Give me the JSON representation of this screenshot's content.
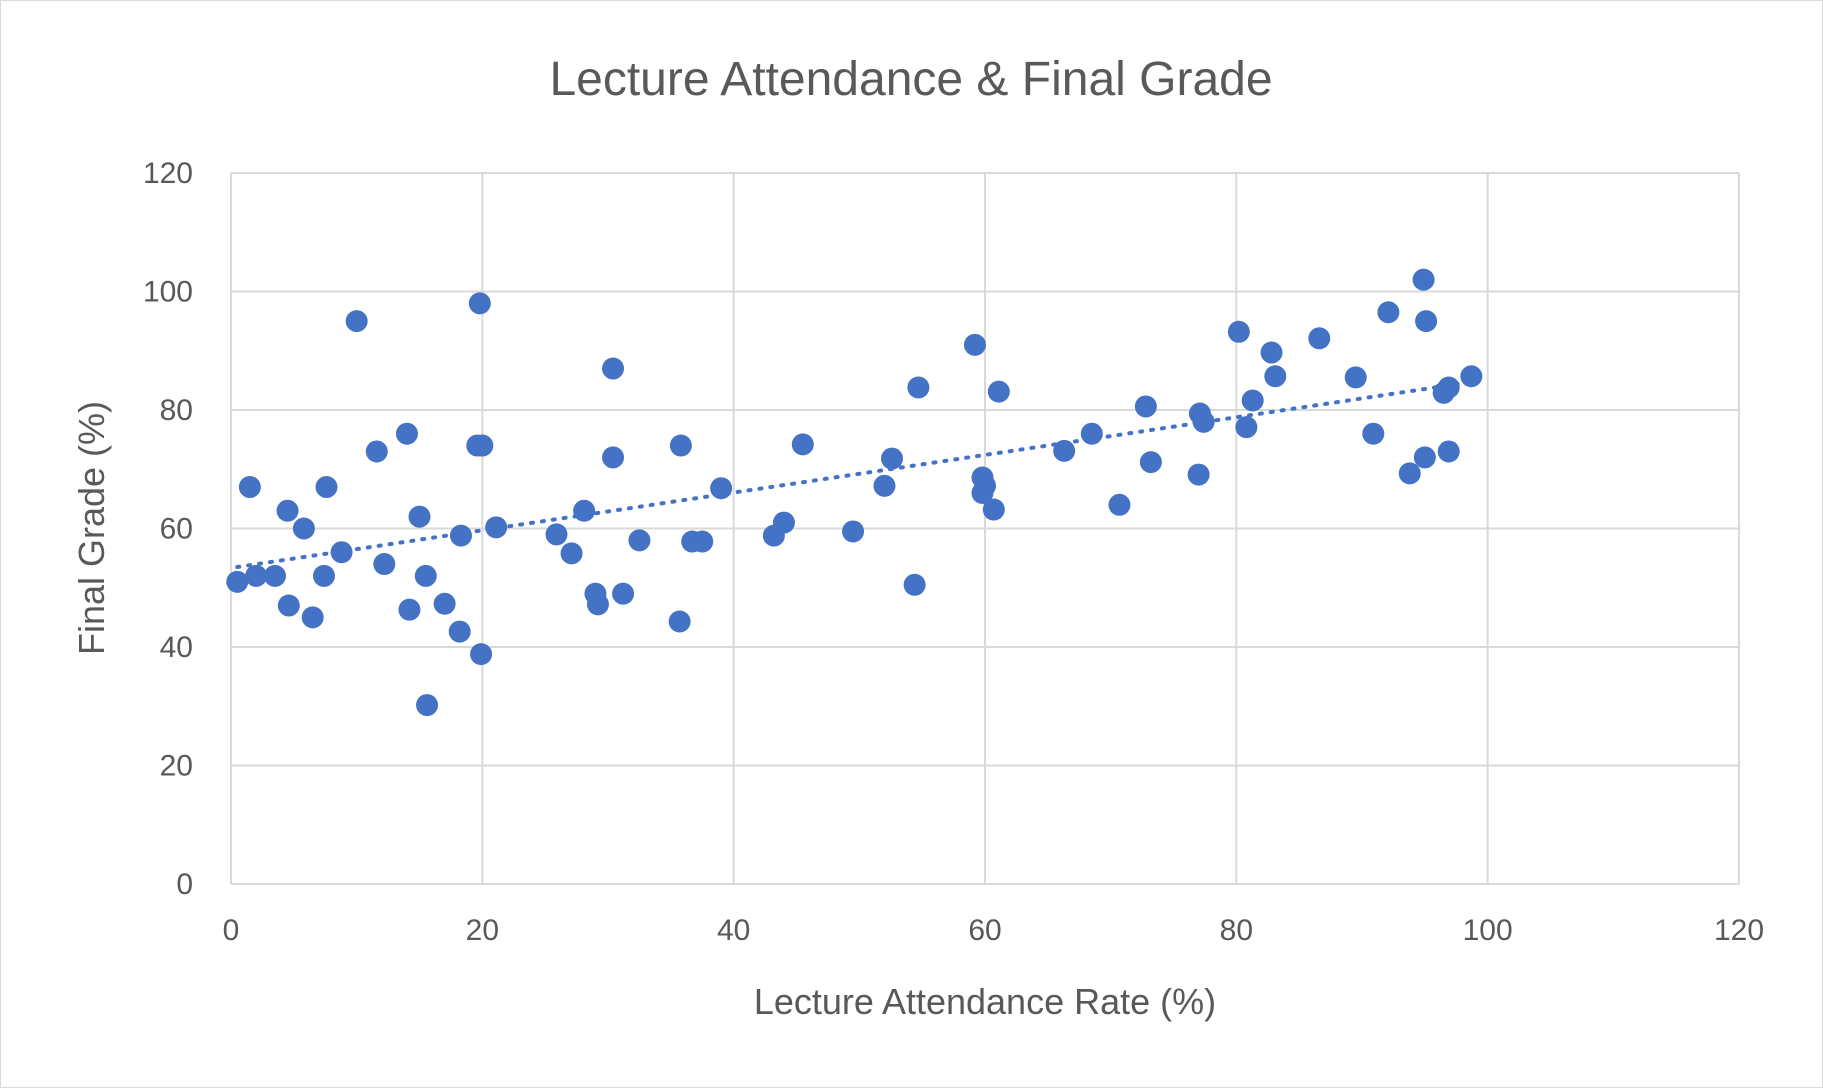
{
  "chart_data": {
    "type": "scatter",
    "title": "Lecture Attendance & Final Grade",
    "xlabel": "Lecture Attendance Rate (%)",
    "ylabel": "Final Grade (%)",
    "xlim": [
      0,
      120
    ],
    "ylim": [
      0,
      120
    ],
    "xticks": [
      "0",
      "20",
      "40",
      "60",
      "80",
      "100",
      "120"
    ],
    "yticks": [
      "0",
      "20",
      "40",
      "60",
      "80",
      "100",
      "120"
    ],
    "grid": true,
    "legend": "none",
    "marker_color": "#4472c4",
    "trendline": {
      "type": "linear",
      "style": "dotted",
      "color": "#4472c4",
      "start": [
        0.5,
        53.5
      ],
      "end": [
        98,
        84.5
      ]
    },
    "series": [
      {
        "points": [
          [
            0.5,
            51
          ],
          [
            1.5,
            67
          ],
          [
            2,
            52
          ],
          [
            3.5,
            52
          ],
          [
            4.5,
            63
          ],
          [
            4.6,
            47
          ],
          [
            5.8,
            60
          ],
          [
            6.5,
            45
          ],
          [
            7.4,
            52
          ],
          [
            7.6,
            67
          ],
          [
            8.8,
            56
          ],
          [
            10,
            95
          ],
          [
            11.6,
            73
          ],
          [
            12.2,
            54
          ],
          [
            14,
            76
          ],
          [
            14.2,
            46.3
          ],
          [
            15,
            62
          ],
          [
            15.5,
            52
          ],
          [
            15.6,
            30.2
          ],
          [
            17,
            47.3
          ],
          [
            18.2,
            42.6
          ],
          [
            18.3,
            58.8
          ],
          [
            19.6,
            74
          ],
          [
            20,
            74
          ],
          [
            19.8,
            98
          ],
          [
            19.9,
            38.8
          ],
          [
            21.1,
            60.2
          ],
          [
            25.9,
            59
          ],
          [
            27.1,
            55.8
          ],
          [
            28.1,
            63
          ],
          [
            29,
            49
          ],
          [
            29.2,
            47.2
          ],
          [
            30.4,
            87
          ],
          [
            30.4,
            72
          ],
          [
            31.2,
            49
          ],
          [
            32.5,
            58
          ],
          [
            35.7,
            44.3
          ],
          [
            35.8,
            74
          ],
          [
            36.7,
            57.8
          ],
          [
            37.5,
            57.8
          ],
          [
            39,
            66.8
          ],
          [
            43.2,
            58.8
          ],
          [
            44,
            61
          ],
          [
            45.5,
            74.2
          ],
          [
            49.5,
            59.5
          ],
          [
            52,
            67.2
          ],
          [
            52.6,
            71.8
          ],
          [
            54.4,
            50.5
          ],
          [
            54.7,
            83.8
          ],
          [
            59.2,
            91
          ],
          [
            59.8,
            68.6
          ],
          [
            60,
            67.2
          ],
          [
            59.8,
            66
          ],
          [
            60.7,
            63.2
          ],
          [
            61.1,
            83.1
          ],
          [
            66.3,
            73.1
          ],
          [
            68.5,
            76
          ],
          [
            70.7,
            64
          ],
          [
            72.8,
            80.6
          ],
          [
            73.2,
            71.2
          ],
          [
            77,
            69.1
          ],
          [
            77.1,
            79.4
          ],
          [
            77.4,
            78
          ],
          [
            80.2,
            93.2
          ],
          [
            80.8,
            77.1
          ],
          [
            81.3,
            81.6
          ],
          [
            82.8,
            89.7
          ],
          [
            83.1,
            85.7
          ],
          [
            86.6,
            92.1
          ],
          [
            89.5,
            85.5
          ],
          [
            90.9,
            76
          ],
          [
            92.1,
            96.5
          ],
          [
            93.8,
            69.3
          ],
          [
            94.9,
            102
          ],
          [
            95.1,
            95
          ],
          [
            95,
            72
          ],
          [
            96.5,
            82.9
          ],
          [
            96.9,
            83.8
          ],
          [
            96.9,
            73
          ],
          [
            98.7,
            85.7
          ]
        ]
      }
    ]
  }
}
